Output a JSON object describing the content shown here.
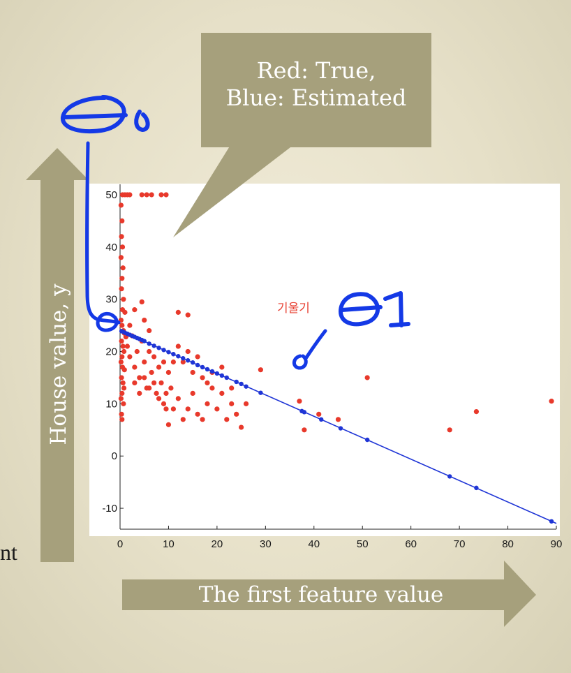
{
  "slide": {
    "callout": {
      "line1": "Red: True,",
      "line2": "Blue: Estimated"
    },
    "y_arrow_label": "House value, y",
    "x_arrow_label": "The first feature value",
    "left_fragment": "nt",
    "korean_annotation": "기울기",
    "colors": {
      "arrow": "#a6a07c",
      "callout": "#a6a07c",
      "true_points": "#e8392b",
      "estimated": "#1f35d6",
      "ink": "#1439e6"
    }
  },
  "chart_data": {
    "type": "scatter",
    "xlim": [
      0,
      90
    ],
    "ylim": [
      -14,
      52
    ],
    "x_ticks": [
      0,
      10,
      20,
      30,
      40,
      50,
      60,
      70,
      80,
      90
    ],
    "y_ticks": [
      -10,
      0,
      10,
      20,
      30,
      40,
      50
    ],
    "grid": false,
    "regression_line": {
      "intercept": 24.0,
      "slope": -0.41
    },
    "series": [
      {
        "role": "true",
        "points": [
          [
            0.5,
            50
          ],
          [
            1,
            50
          ],
          [
            1.5,
            50
          ],
          [
            2,
            50
          ],
          [
            4.5,
            50
          ],
          [
            5.5,
            50
          ],
          [
            6.5,
            50
          ],
          [
            8.5,
            50
          ],
          [
            9.5,
            50
          ],
          [
            0.2,
            48
          ],
          [
            0.4,
            45
          ],
          [
            0.3,
            42
          ],
          [
            0.5,
            40
          ],
          [
            0.2,
            38
          ],
          [
            0.6,
            36
          ],
          [
            0.4,
            34
          ],
          [
            0.3,
            32
          ],
          [
            0.7,
            30
          ],
          [
            0.5,
            28
          ],
          [
            1.0,
            27.5
          ],
          [
            0.2,
            26
          ],
          [
            0.4,
            25
          ],
          [
            0.7,
            24
          ],
          [
            0.9,
            23.5
          ],
          [
            1.2,
            22.8
          ],
          [
            0.3,
            22
          ],
          [
            0.6,
            21
          ],
          [
            0.8,
            20
          ],
          [
            0.4,
            19
          ],
          [
            0.2,
            18
          ],
          [
            0.5,
            17
          ],
          [
            0.9,
            16.5
          ],
          [
            0.3,
            15
          ],
          [
            0.6,
            14
          ],
          [
            0.8,
            13
          ],
          [
            0.4,
            12
          ],
          [
            0.2,
            11
          ],
          [
            0.7,
            10
          ],
          [
            0.3,
            8
          ],
          [
            0.4,
            7
          ],
          [
            1.5,
            21
          ],
          [
            2,
            19
          ],
          [
            2.5,
            23
          ],
          [
            3,
            17
          ],
          [
            3.5,
            20
          ],
          [
            4,
            15
          ],
          [
            4.5,
            22
          ],
          [
            5,
            18
          ],
          [
            5.5,
            13
          ],
          [
            6,
            20
          ],
          [
            6.5,
            16
          ],
          [
            7,
            19
          ],
          [
            7.5,
            12
          ],
          [
            8,
            17
          ],
          [
            8.5,
            14
          ],
          [
            9,
            18
          ],
          [
            9.5,
            12
          ],
          [
            10,
            16
          ],
          [
            10.5,
            13
          ],
          [
            11,
            18
          ],
          [
            2,
            25
          ],
          [
            3,
            28
          ],
          [
            4.5,
            29.5
          ],
          [
            5,
            26
          ],
          [
            6,
            24
          ],
          [
            3,
            14
          ],
          [
            4,
            12
          ],
          [
            5,
            15
          ],
          [
            6,
            13
          ],
          [
            7,
            14
          ],
          [
            8,
            11
          ],
          [
            9,
            10
          ],
          [
            9.5,
            9
          ],
          [
            10,
            6
          ],
          [
            11,
            9
          ],
          [
            12,
            11
          ],
          [
            13,
            7
          ],
          [
            14,
            9
          ],
          [
            15,
            12
          ],
          [
            16,
            8
          ],
          [
            17,
            7
          ],
          [
            18,
            10
          ],
          [
            19,
            13
          ],
          [
            20,
            9
          ],
          [
            21,
            12
          ],
          [
            22,
            7
          ],
          [
            23,
            10
          ],
          [
            24,
            8
          ],
          [
            25,
            5.5
          ],
          [
            26,
            10
          ],
          [
            12,
            21
          ],
          [
            13,
            18
          ],
          [
            14,
            20
          ],
          [
            15,
            16
          ],
          [
            16,
            19
          ],
          [
            17,
            15
          ],
          [
            18,
            14
          ],
          [
            19,
            16
          ],
          [
            21,
            17
          ],
          [
            23,
            13
          ],
          [
            12,
            27.5
          ],
          [
            14,
            27
          ],
          [
            29,
            16.5
          ],
          [
            37,
            10.5
          ],
          [
            38,
            5
          ],
          [
            41,
            8
          ],
          [
            45,
            7
          ],
          [
            51,
            15
          ],
          [
            68,
            5
          ],
          [
            73.5,
            8.5
          ],
          [
            89,
            10.5
          ]
        ]
      },
      {
        "role": "estimated",
        "points": [
          [
            0.3,
            23.9
          ],
          [
            0.6,
            23.8
          ],
          [
            1,
            23.6
          ],
          [
            1.5,
            23.4
          ],
          [
            2,
            23.2
          ],
          [
            2.5,
            23.0
          ],
          [
            3,
            22.8
          ],
          [
            3.5,
            22.6
          ],
          [
            4,
            22.4
          ],
          [
            4.5,
            22.2
          ],
          [
            5,
            22.0
          ],
          [
            6,
            21.5
          ],
          [
            7,
            21.1
          ],
          [
            8,
            20.7
          ],
          [
            9,
            20.3
          ],
          [
            10,
            19.9
          ],
          [
            11,
            19.5
          ],
          [
            12,
            19.1
          ],
          [
            13,
            18.7
          ],
          [
            14,
            18.3
          ],
          [
            15,
            17.9
          ],
          [
            16,
            17.4
          ],
          [
            17,
            17.0
          ],
          [
            18,
            16.6
          ],
          [
            19,
            16.2
          ],
          [
            20,
            15.8
          ],
          [
            21,
            15.4
          ],
          [
            22,
            15.0
          ],
          [
            24,
            14.2
          ],
          [
            25,
            13.8
          ],
          [
            26,
            13.3
          ],
          [
            29,
            12.1
          ],
          [
            37.5,
            8.6
          ],
          [
            38,
            8.4
          ],
          [
            41.5,
            7.0
          ],
          [
            45.5,
            5.3
          ],
          [
            51,
            3.1
          ],
          [
            68,
            -3.9
          ],
          [
            73.5,
            -6.1
          ],
          [
            89,
            -12.5
          ]
        ]
      }
    ]
  }
}
